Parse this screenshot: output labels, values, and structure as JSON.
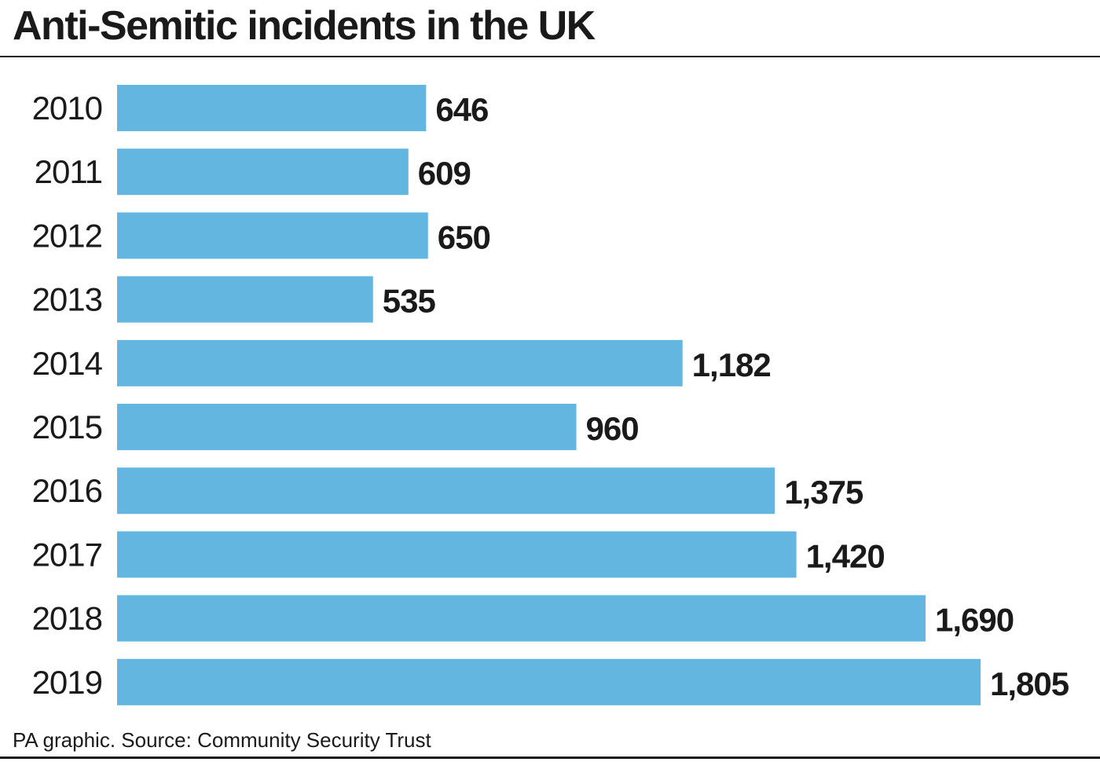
{
  "title": "Anti-Semitic incidents in the UK",
  "source": "PA graphic. Source: Community Security Trust",
  "colors": {
    "bar": "#63b6e0",
    "text": "#1a1a1a",
    "background": "#ffffff"
  },
  "chart_data": {
    "type": "bar",
    "orientation": "horizontal",
    "title": "Anti-Semitic incidents in the UK",
    "categories": [
      "2010",
      "2011",
      "2012",
      "2013",
      "2014",
      "2015",
      "2016",
      "2017",
      "2018",
      "2019"
    ],
    "values": [
      646,
      609,
      650,
      535,
      1182,
      960,
      1375,
      1420,
      1690,
      1805
    ],
    "value_labels": [
      "646",
      "609",
      "650",
      "535",
      "1,182",
      "960",
      "1,375",
      "1,420",
      "1,690",
      "1,805"
    ],
    "xlim": [
      0,
      1805
    ],
    "grid": false,
    "legend": "none"
  }
}
